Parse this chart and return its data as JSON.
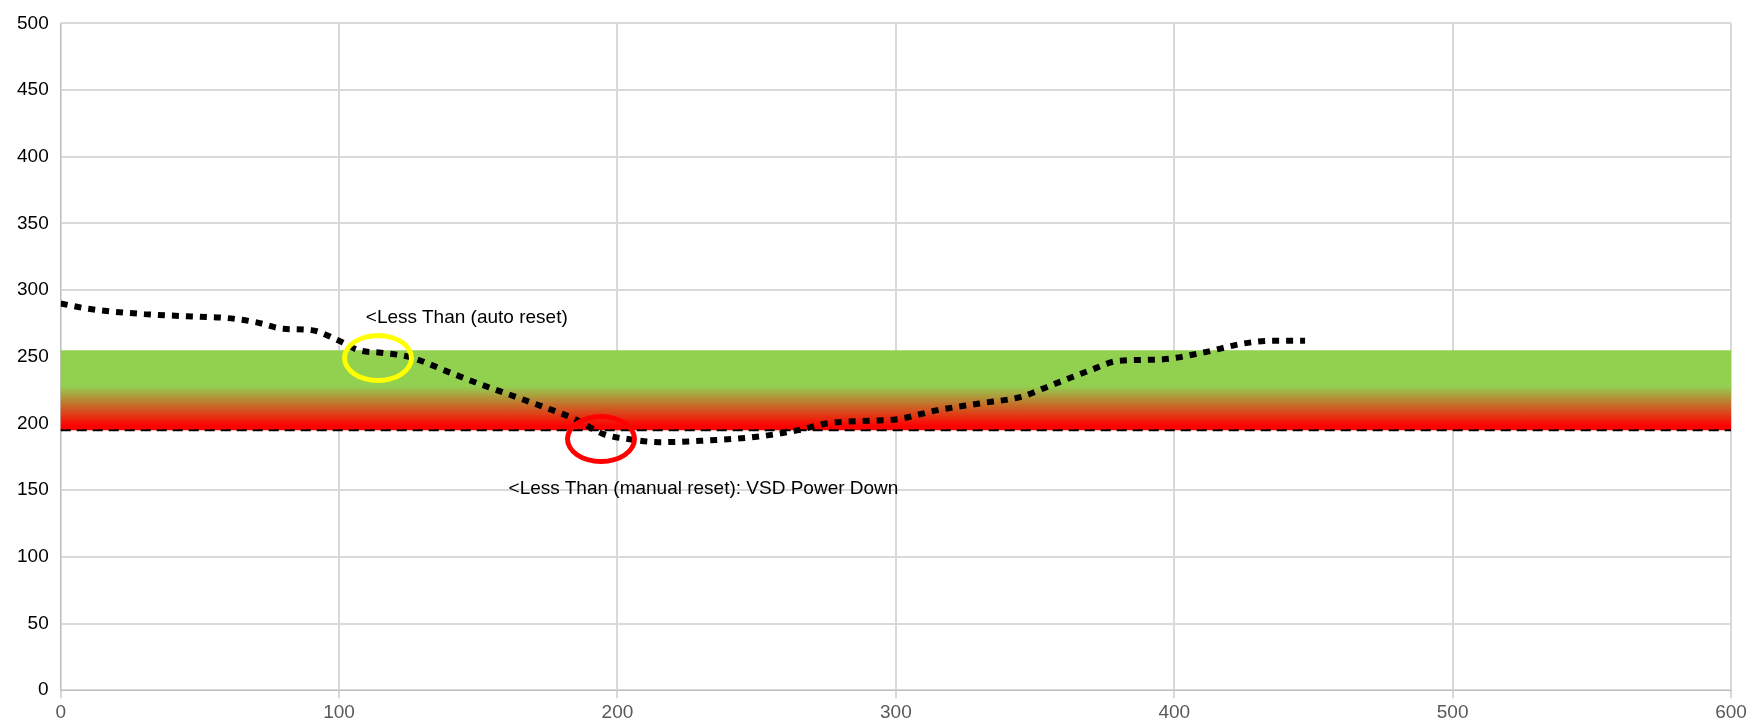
{
  "chart_data": {
    "type": "line",
    "xlim": [
      0,
      600
    ],
    "xticks": [
      0,
      100,
      200,
      300,
      400,
      500,
      600
    ],
    "ylim": [
      0,
      500
    ],
    "yticks": [
      0,
      50,
      100,
      150,
      200,
      250,
      300,
      350,
      400,
      450,
      500
    ],
    "grid": true,
    "legend": false,
    "marker": "none",
    "line_style": "dotted",
    "series": [
      {
        "color": "#000000",
        "x": [
          0,
          10,
          30,
          50,
          60,
          70,
          80,
          90,
          100,
          107,
          115,
          125,
          140,
          150,
          170,
          185,
          195,
          205,
          215,
          230,
          250,
          265,
          275,
          290,
          300,
          315,
          330,
          345,
          355,
          370,
          380,
          395,
          410,
          425,
          435,
          447
        ],
        "values": [
          290,
          286,
          282,
          280,
          279,
          276,
          271,
          270,
          262,
          255,
          253,
          250,
          238,
          230,
          215,
          203,
          192,
          188,
          186,
          187,
          190,
          195,
          200,
          202,
          203,
          210,
          215,
          220,
          228,
          240,
          247,
          248,
          253,
          260,
          262,
          262
        ]
      }
    ],
    "bands": [
      {
        "axis": "y",
        "from": 195,
        "to": 255,
        "color": "#92d050"
      }
    ],
    "ref_lines": [
      {
        "axis": "y",
        "value": 195,
        "color": "#000000",
        "line_style": "dashed"
      }
    ],
    "annotations": [
      {
        "text": "<Less Than (auto reset)",
        "x": 115,
        "y": 253
      },
      {
        "text": "<Less Than (manual reset): VSD Power Down",
        "x": 195,
        "y": 192
      }
    ]
  }
}
